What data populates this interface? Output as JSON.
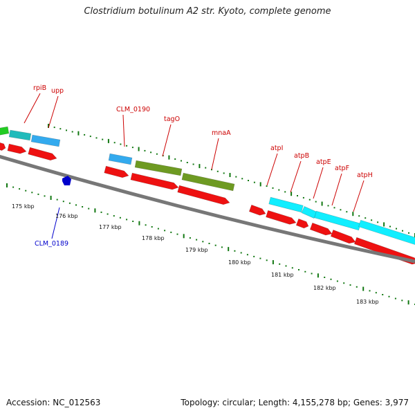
{
  "title": "Clostridium botulinum A2 str. Kyoto, complete genome",
  "footer": {
    "accession": "Accession: NC_012563",
    "summary": "Topology: circular; Length: 4,155,278 bp; Genes: 3,977"
  },
  "colors": {
    "backbone": "#777777",
    "cds_red": "#ee1111",
    "green": "#22cc22",
    "teal": "#22bbbb",
    "sky": "#33aaee",
    "olive": "#6e9a22",
    "cyan": "#11eeff",
    "blue": "#0000cc",
    "dots": "#117711",
    "label_red": "#cc0000"
  },
  "scale_ticks": [
    "175 kbp",
    "176 kbp",
    "177 kbp",
    "178 kbp",
    "179 kbp",
    "180 kbp",
    "181 kbp",
    "182 kbp",
    "183 kbp"
  ],
  "gene_labels": [
    {
      "text": "rpiB",
      "color": "red"
    },
    {
      "text": "upp",
      "color": "red"
    },
    {
      "text": "CLM_0190",
      "color": "red"
    },
    {
      "text": "tagO",
      "color": "red"
    },
    {
      "text": "mnaA",
      "color": "red"
    },
    {
      "text": "atpI",
      "color": "red"
    },
    {
      "text": "atpB",
      "color": "red"
    },
    {
      "text": "atpE",
      "color": "red"
    },
    {
      "text": "atpF",
      "color": "red"
    },
    {
      "text": "atpH",
      "color": "red"
    },
    {
      "text": "CLM_0189",
      "color": "blue"
    }
  ]
}
